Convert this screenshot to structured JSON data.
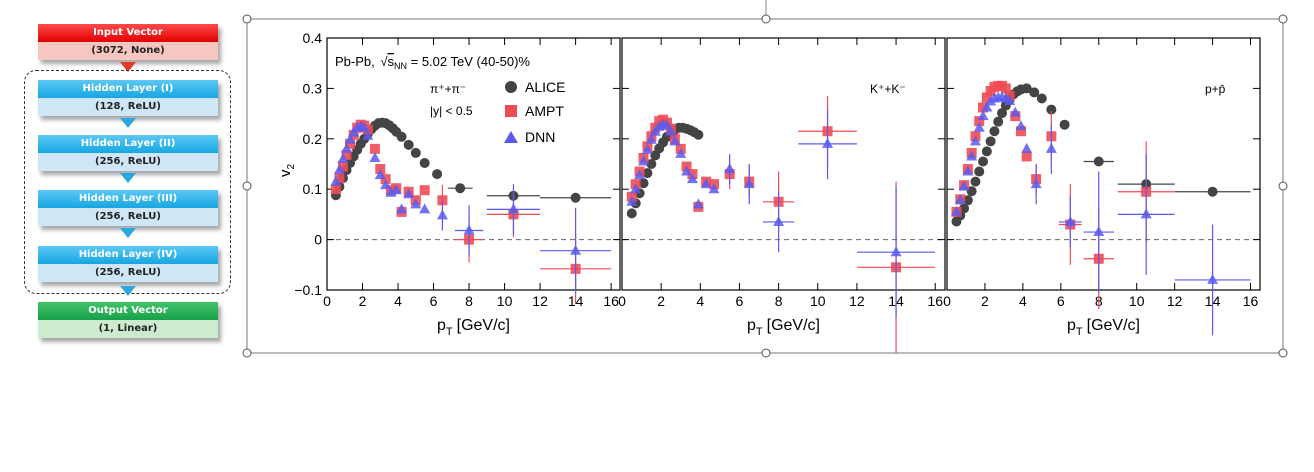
{
  "network": {
    "input": {
      "title": "Input Vector",
      "sub": "(3072, None)"
    },
    "hidden": [
      {
        "title": "Hidden Layer (I)",
        "sub": "(128, ReLU)"
      },
      {
        "title": "Hidden Layer (II)",
        "sub": "(256, ReLU)"
      },
      {
        "title": "Hidden Layer (III)",
        "sub": "(256, ReLU)"
      },
      {
        "title": "Hidden Layer (IV)",
        "sub": "(256, ReLU)"
      }
    ],
    "output": {
      "title": "Output Vector",
      "sub": "(1, Linear)"
    }
  },
  "chart_data": {
    "type": "scatter",
    "ylabel": "v",
    "ylabel_sub": "2",
    "xlabel": "p",
    "xlabel_sub": "T",
    "xlabel_unit": "[GeV/c]",
    "xlim": [
      0,
      16.5
    ],
    "ylim": [
      -0.1,
      0.4
    ],
    "xticks": [
      0,
      2,
      4,
      6,
      8,
      10,
      12,
      14,
      16
    ],
    "yticks": [
      -0.1,
      0,
      0.1,
      0.2,
      0.3,
      0.4
    ],
    "ytick_labels": [
      "−0.1",
      "0",
      "0.1",
      "0.2",
      "0.3",
      "0.4"
    ],
    "annotation": {
      "system_pre": "Pb-Pb, ",
      "sqrt_s": "s",
      "sqrt_s_sub": "NN",
      "system_post": " = 5.02 TeV (40-50)%",
      "rapidity": "|y| < 0.5"
    },
    "legend": {
      "position": "top-right of first panel",
      "entries": [
        "ALICE",
        "AMPT",
        "DNN"
      ]
    },
    "colors": {
      "ALICE": "#444444",
      "AMPT": "#ef4b55",
      "DNN": "#5a5af0"
    },
    "panels": [
      {
        "particle": "π⁺+π⁻",
        "series": [
          {
            "name": "ALICE",
            "marker": "circle",
            "x": [
              0.5,
              0.7,
              0.9,
              1.1,
              1.3,
              1.5,
              1.7,
              1.9,
              2.1,
              2.3,
              2.5,
              2.7,
              2.9,
              3.1,
              3.3,
              3.5,
              3.7,
              3.9,
              4.2,
              4.6,
              5.0,
              5.5,
              6.2,
              7.5,
              10.5,
              14.0
            ],
            "y": [
              0.088,
              0.105,
              0.122,
              0.138,
              0.152,
              0.165,
              0.178,
              0.19,
              0.2,
              0.21,
              0.219,
              0.226,
              0.231,
              0.232,
              0.231,
              0.227,
              0.221,
              0.214,
              0.204,
              0.188,
              0.172,
              0.152,
              0.13,
              0.102,
              0.087,
              0.083
            ],
            "xerr": [
              0,
              0,
              0,
              0,
              0,
              0,
              0,
              0,
              0,
              0,
              0,
              0,
              0,
              0,
              0,
              0,
              0,
              0,
              0,
              0,
              0,
              0,
              0,
              0.7,
              1.5,
              2.0
            ]
          },
          {
            "name": "AMPT",
            "marker": "square",
            "x": [
              0.5,
              0.7,
              0.9,
              1.1,
              1.3,
              1.5,
              1.7,
              1.9,
              2.1,
              2.3,
              2.7,
              3.0,
              3.3,
              3.6,
              3.9,
              4.2,
              4.6,
              5.0,
              5.5,
              6.5,
              8.0,
              10.5,
              14.0
            ],
            "y": [
              0.1,
              0.122,
              0.145,
              0.168,
              0.19,
              0.208,
              0.222,
              0.228,
              0.226,
              0.218,
              0.18,
              0.14,
              0.12,
              0.098,
              0.102,
              0.055,
              0.095,
              0.078,
              0.098,
              0.078,
              0.0,
              0.05,
              -0.058
            ],
            "xerr": [
              0,
              0,
              0,
              0,
              0,
              0,
              0,
              0,
              0,
              0,
              0,
              0,
              0,
              0,
              0,
              0,
              0,
              0,
              0,
              0,
              0.8,
              1.5,
              2.0
            ],
            "yerr": [
              0,
              0,
              0,
              0,
              0,
              0,
              0,
              0,
              0,
              0,
              0,
              0,
              0,
              0,
              0,
              0,
              0,
              0,
              0,
              0.03,
              0.045,
              0.045,
              0.07
            ]
          },
          {
            "name": "DNN",
            "marker": "triangle",
            "x": [
              0.5,
              0.7,
              0.9,
              1.1,
              1.3,
              1.5,
              1.7,
              1.9,
              2.1,
              2.3,
              2.7,
              3.0,
              3.3,
              3.6,
              3.9,
              4.2,
              4.6,
              5.0,
              5.5,
              6.5,
              8.0,
              10.5,
              14.0
            ],
            "y": [
              0.115,
              0.138,
              0.16,
              0.18,
              0.198,
              0.212,
              0.222,
              0.224,
              0.222,
              0.206,
              0.162,
              0.128,
              0.108,
              0.093,
              0.098,
              0.06,
              0.09,
              0.07,
              0.06,
              0.048,
              0.018,
              0.06,
              -0.022
            ],
            "xerr": [
              0,
              0,
              0,
              0,
              0,
              0,
              0,
              0,
              0,
              0,
              0,
              0,
              0,
              0,
              0,
              0,
              0,
              0,
              0,
              0,
              0.8,
              1.5,
              2.0
            ],
            "yerr": [
              0,
              0,
              0,
              0,
              0,
              0,
              0,
              0,
              0,
              0,
              0,
              0,
              0,
              0,
              0,
              0,
              0,
              0,
              0,
              0.03,
              0.05,
              0.05,
              0.085
            ]
          }
        ]
      },
      {
        "particle": "K⁺+K⁻",
        "series": [
          {
            "name": "ALICE",
            "marker": "circle",
            "x": [
              0.5,
              0.7,
              0.9,
              1.1,
              1.3,
              1.5,
              1.7,
              1.9,
              2.1,
              2.3,
              2.5,
              2.7,
              2.9,
              3.1,
              3.3,
              3.5,
              3.7,
              3.9
            ],
            "y": [
              0.052,
              0.072,
              0.092,
              0.112,
              0.132,
              0.15,
              0.167,
              0.181,
              0.193,
              0.204,
              0.212,
              0.218,
              0.222,
              0.222,
              0.22,
              0.217,
              0.213,
              0.208
            ],
            "xerr": [
              0,
              0,
              0,
              0,
              0,
              0,
              0,
              0,
              0,
              0,
              0,
              0,
              0,
              0,
              0,
              0,
              0,
              0
            ]
          },
          {
            "name": "AMPT",
            "marker": "square",
            "x": [
              0.5,
              0.7,
              0.9,
              1.1,
              1.3,
              1.5,
              1.7,
              1.9,
              2.1,
              2.3,
              2.5,
              2.7,
              3.0,
              3.3,
              3.6,
              3.9,
              4.3,
              4.7,
              5.5,
              6.5,
              8.0,
              10.5,
              14.0
            ],
            "y": [
              0.085,
              0.11,
              0.135,
              0.162,
              0.185,
              0.205,
              0.222,
              0.235,
              0.238,
              0.232,
              0.22,
              0.2,
              0.18,
              0.145,
              0.13,
              0.065,
              0.115,
              0.11,
              0.13,
              0.115,
              0.075,
              0.215,
              -0.055
            ],
            "xerr": [
              0,
              0,
              0,
              0,
              0,
              0,
              0,
              0,
              0,
              0,
              0,
              0,
              0,
              0,
              0,
              0,
              0,
              0,
              0,
              0,
              0.8,
              1.5,
              2.0
            ],
            "yerr": [
              0,
              0,
              0,
              0,
              0,
              0,
              0,
              0,
              0,
              0,
              0,
              0,
              0,
              0,
              0,
              0,
              0,
              0,
              0.03,
              0.03,
              0.06,
              0.07,
              0.17
            ]
          },
          {
            "name": "DNN",
            "marker": "triangle",
            "x": [
              0.5,
              0.7,
              0.9,
              1.1,
              1.3,
              1.5,
              1.7,
              1.9,
              2.1,
              2.3,
              2.5,
              2.7,
              3.0,
              3.3,
              3.6,
              3.9,
              4.3,
              4.7,
              5.5,
              6.5,
              8.0,
              10.5,
              14.0
            ],
            "y": [
              0.075,
              0.1,
              0.128,
              0.155,
              0.178,
              0.198,
              0.214,
              0.224,
              0.228,
              0.226,
              0.214,
              0.195,
              0.17,
              0.135,
              0.12,
              0.07,
              0.11,
              0.1,
              0.14,
              0.11,
              0.035,
              0.19,
              -0.025
            ],
            "xerr": [
              0,
              0,
              0,
              0,
              0,
              0,
              0,
              0,
              0,
              0,
              0,
              0,
              0,
              0,
              0,
              0,
              0,
              0,
              0,
              0,
              0.8,
              1.5,
              2.0
            ],
            "yerr": [
              0,
              0,
              0,
              0,
              0,
              0,
              0,
              0,
              0,
              0,
              0,
              0,
              0,
              0,
              0,
              0,
              0,
              0,
              0.03,
              0.04,
              0.06,
              0.07,
              0.13
            ]
          }
        ]
      },
      {
        "particle": "p+p̄",
        "series": [
          {
            "name": "ALICE",
            "marker": "circle",
            "x": [
              0.5,
              0.7,
              0.9,
              1.1,
              1.3,
              1.5,
              1.7,
              1.9,
              2.1,
              2.3,
              2.5,
              2.7,
              2.9,
              3.1,
              3.3,
              3.5,
              3.7,
              3.9,
              4.2,
              4.6,
              5.0,
              5.5,
              6.2,
              8.0,
              10.5,
              14.0
            ],
            "y": [
              0.036,
              0.048,
              0.062,
              0.078,
              0.096,
              0.115,
              0.135,
              0.155,
              0.175,
              0.195,
              0.215,
              0.234,
              0.251,
              0.266,
              0.278,
              0.288,
              0.294,
              0.298,
              0.3,
              0.292,
              0.28,
              0.258,
              0.228,
              0.155,
              0.11,
              0.095
            ],
            "xerr": [
              0,
              0,
              0,
              0,
              0,
              0,
              0,
              0,
              0,
              0,
              0,
              0,
              0,
              0,
              0,
              0,
              0,
              0,
              0,
              0,
              0,
              0,
              0,
              0.8,
              1.5,
              2.0
            ]
          },
          {
            "name": "AMPT",
            "marker": "square",
            "x": [
              0.5,
              0.7,
              0.9,
              1.1,
              1.3,
              1.5,
              1.7,
              1.9,
              2.1,
              2.3,
              2.5,
              2.7,
              2.9,
              3.1,
              3.3,
              3.6,
              3.9,
              4.2,
              4.7,
              5.5,
              6.5,
              8.0,
              10.5,
              14.0
            ],
            "y": [
              0.055,
              0.08,
              0.108,
              0.14,
              0.172,
              0.205,
              0.235,
              0.262,
              0.282,
              0.295,
              0.303,
              0.305,
              0.305,
              0.3,
              0.285,
              0.245,
              0.215,
              0.165,
              0.12,
              0.205,
              0.03,
              -0.038,
              0.095,
              null
            ],
            "xerr": [
              0,
              0,
              0,
              0,
              0,
              0,
              0,
              0,
              0,
              0,
              0,
              0,
              0,
              0,
              0,
              0,
              0,
              0,
              0,
              0,
              0.6,
              0.8,
              1.5,
              0
            ],
            "yerr": [
              0,
              0,
              0,
              0,
              0,
              0,
              0,
              0,
              0,
              0,
              0,
              0,
              0,
              0,
              0,
              0,
              0,
              0,
              0.03,
              0.05,
              0.08,
              0.1,
              0.1,
              0
            ]
          },
          {
            "name": "DNN",
            "marker": "triangle",
            "x": [
              0.5,
              0.7,
              0.9,
              1.1,
              1.3,
              1.5,
              1.7,
              1.9,
              2.1,
              2.3,
              2.5,
              2.7,
              2.9,
              3.1,
              3.3,
              3.6,
              3.9,
              4.2,
              4.7,
              5.5,
              6.5,
              8.0,
              10.5,
              14.0
            ],
            "y": [
              0.055,
              0.078,
              0.105,
              0.135,
              0.165,
              0.195,
              0.222,
              0.245,
              0.262,
              0.274,
              0.28,
              0.282,
              0.282,
              0.28,
              0.275,
              0.252,
              0.225,
              0.18,
              0.11,
              0.18,
              0.035,
              0.015,
              0.05,
              -0.08
            ],
            "xerr": [
              0,
              0,
              0,
              0,
              0,
              0,
              0,
              0,
              0,
              0,
              0,
              0,
              0,
              0,
              0,
              0,
              0,
              0,
              0,
              0,
              0.6,
              0.8,
              1.5,
              2.0
            ],
            "yerr": [
              0,
              0,
              0,
              0,
              0,
              0,
              0,
              0,
              0,
              0,
              0,
              0,
              0,
              0,
              0,
              0,
              0,
              0,
              0.04,
              0.05,
              0.05,
              0.12,
              0.12,
              0.11
            ]
          }
        ]
      }
    ]
  }
}
